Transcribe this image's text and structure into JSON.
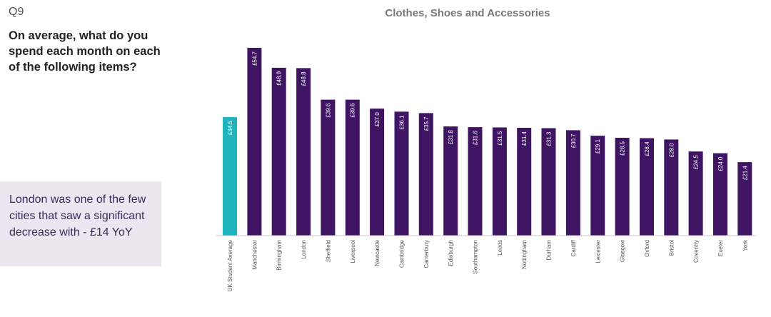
{
  "question": {
    "number": "Q9",
    "text": "On average, what do you spend each month on each of the following items?"
  },
  "callout": {
    "text": "London was one of the few cities that saw a significant decrease with - £14 YoY"
  },
  "colors": {
    "highlight": "#1fb3bd",
    "bar": "#3f1563",
    "callout_bg": "#ece6f0"
  },
  "chart_data": {
    "type": "bar",
    "title": "Clothes, Shoes and Accessories",
    "xlabel": "",
    "ylabel": "",
    "ylim": [
      0,
      55
    ],
    "grid": false,
    "value_prefix": "£",
    "categories": [
      "UK Student Average",
      "Manchester",
      "Birmingham",
      "London",
      "Sheffield",
      "Liverpool",
      "Newcastle",
      "Cambridge",
      "Canterbury",
      "Edinburgh",
      "Southampton",
      "Leeds",
      "Nottingham",
      "Durham",
      "Cardiff",
      "Leicester",
      "Glasgow",
      "Oxford",
      "Bristol",
      "Coventry",
      "Exeter",
      "York"
    ],
    "values": [
      34.5,
      54.7,
      48.9,
      48.8,
      39.6,
      39.6,
      37.0,
      36.1,
      35.7,
      31.8,
      31.6,
      31.5,
      31.4,
      31.3,
      30.7,
      29.1,
      28.5,
      28.4,
      28.0,
      24.5,
      24.0,
      21.4
    ],
    "highlight_category": "UK Student Average"
  }
}
